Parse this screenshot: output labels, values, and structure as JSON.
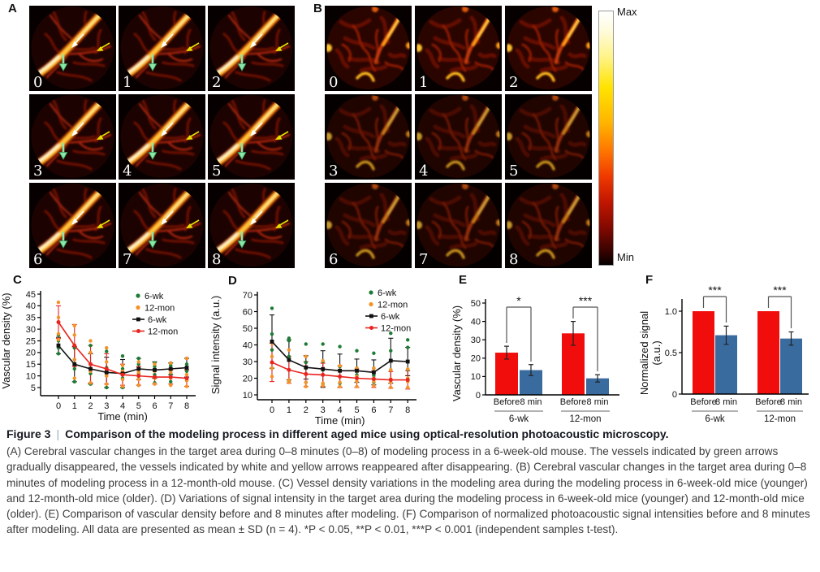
{
  "figure": {
    "panel_letters": {
      "A": "A",
      "B": "B",
      "C": "C",
      "D": "D",
      "E": "E",
      "F": "F"
    },
    "panelA": {
      "frames": [
        "0",
        "1",
        "2",
        "3",
        "4",
        "5",
        "6",
        "7",
        "8"
      ]
    },
    "panelB": {
      "frames": [
        "0",
        "1",
        "2",
        "3",
        "4",
        "5",
        "6",
        "7",
        "8"
      ]
    },
    "colorbar": {
      "max_label": "Max",
      "min_label": "Min"
    },
    "caption": {
      "fig_label": "Figure 3",
      "separator": "|",
      "title": "Comparison of the modeling process in different aged mice using optical-resolution photoacoustic microscopy.",
      "body": "(A) Cerebral vascular changes in the target area during 0–8 minutes (0–8) of modeling process in a 6-week-old mouse. The vessels indicated by green arrows gradually disappeared, the vessels indicated by white and yellow arrows reappeared after disappearing. (B) Cerebral vascular changes in the target area during 0–8 minutes of modeling process in a 12-month-old mouse. (C) Vessel density variations in the modeling area during the modeling process in 6-week-old mice (younger) and 12-month-old mice (older). (D) Variations of signal intensity in the target area during the modeling process in 6-week-old mice (younger) and 12-month-old mice (older). (E) Comparison of vascular density before and 8 minutes after modeling. (F) Comparison of normalized photoacoustic signal intensities before and 8 minutes after modeling. All data are presented as mean ± SD (n = 4). *P < 0.05, **P < 0.01, ***P < 0.001 (independent samples t-test)."
    }
  },
  "chart_data": [
    {
      "panel": "C",
      "type": "scatter",
      "title": "",
      "xlabel": "Time (min)",
      "ylabel": "Vascular density (%)",
      "x": [
        0,
        1,
        2,
        3,
        4,
        5,
        6,
        7,
        8
      ],
      "yticks": [
        5,
        10,
        15,
        20,
        25,
        30,
        35,
        40,
        45
      ],
      "ylim": [
        5,
        45
      ],
      "grid": false,
      "legend_position": "top-right",
      "scatter": [
        {
          "name": "6-wk",
          "color": "#1e7b34",
          "points": [
            [
              19.5,
              22,
              25,
              27.5
            ],
            [
              7.5,
              13,
              17,
              22
            ],
            [
              6.5,
              11,
              15,
              23
            ],
            [
              5,
              10,
              13.5,
              20.5
            ],
            [
              5,
              9,
              13,
              18.5
            ],
            [
              6,
              11,
              15,
              17.5
            ],
            [
              7,
              10.5,
              14,
              15.5
            ],
            [
              7.5,
              11,
              14.5,
              15.5
            ],
            [
              8,
              12,
              15,
              17.5
            ]
          ]
        },
        {
          "name": "12-mon",
          "color": "#f59227",
          "points": [
            [
              25.5,
              28,
              35,
              41.5
            ],
            [
              9,
              17,
              27.5,
              31.5
            ],
            [
              7,
              12,
              20,
              25
            ],
            [
              6.5,
              10,
              16,
              22
            ],
            [
              5.5,
              8.5,
              12,
              14.5
            ],
            [
              6,
              8.5,
              11.5,
              16
            ],
            [
              6.5,
              9,
              12,
              15
            ],
            [
              6,
              9,
              11.5,
              15.5
            ],
            [
              5.5,
              8,
              10.5,
              17.5
            ]
          ]
        }
      ],
      "series": [
        {
          "name": "6-wk",
          "color": "#111111",
          "marker": "square",
          "values": [
            23,
            15,
            13,
            11.5,
            11,
            13,
            12.5,
            13,
            13.5
          ],
          "errors": [
            3.5,
            7.5,
            6.5,
            6.5,
            6,
            4.5,
            3.5,
            2.5,
            4
          ]
        },
        {
          "name": "12-mon",
          "color": "#e8241e",
          "marker": "circle",
          "values": [
            33,
            23,
            15,
            13,
            10.5,
            10,
            9.5,
            9.5,
            9
          ],
          "errors": [
            7,
            9,
            8,
            6.5,
            4.5,
            4,
            3,
            3,
            3.5
          ]
        }
      ]
    },
    {
      "panel": "D",
      "type": "scatter",
      "title": "",
      "xlabel": "Time (min)",
      "ylabel": "Signal intensity (a.u.)",
      "x": [
        0,
        1,
        2,
        3,
        4,
        5,
        6,
        7,
        8
      ],
      "yticks": [
        10,
        20,
        30,
        40,
        50,
        60,
        70
      ],
      "ylim": [
        10,
        70
      ],
      "grid": false,
      "legend_position": "top-right",
      "scatter": [
        {
          "name": "6-wk",
          "color": "#1e7b34",
          "points": [
            [
              26,
              37,
              46.5,
              62
            ],
            [
              18,
              33,
              42.5,
              44
            ],
            [
              17.5,
              26,
              29.5,
              40.5
            ],
            [
              16.5,
              25,
              30,
              40.5
            ],
            [
              17,
              21,
              27,
              39
            ],
            [
              18,
              22,
              26,
              36.5
            ],
            [
              17.5,
              21.5,
              26,
              35
            ],
            [
              19,
              25,
              36.5,
              47
            ],
            [
              19,
              25,
              38.5,
              43
            ]
          ]
        },
        {
          "name": "12-mon",
          "color": "#f59227",
          "points": [
            [
              21,
              26,
              33,
              41
            ],
            [
              17.5,
              19,
              25,
              37
            ],
            [
              15,
              17.5,
              22.5,
              33
            ],
            [
              15.5,
              17,
              22,
              30.5
            ],
            [
              15,
              17.5,
              21,
              27.5
            ],
            [
              15,
              18,
              21,
              26
            ],
            [
              15.5,
              18,
              20,
              26
            ],
            [
              14.5,
              17.5,
              19.5,
              25
            ],
            [
              14.5,
              18,
              20,
              25.5
            ]
          ]
        }
      ],
      "series": [
        {
          "name": "6-wk",
          "color": "#111111",
          "marker": "square",
          "values": [
            42,
            31,
            26.5,
            25.5,
            24.5,
            24.5,
            23.5,
            30.5,
            30
          ],
          "errors": [
            16,
            12,
            7,
            11,
            10,
            7,
            7.5,
            13.5,
            8.5
          ]
        },
        {
          "name": "12-mon",
          "color": "#e8241e",
          "marker": "circle",
          "values": [
            29.5,
            25,
            22.5,
            22,
            21,
            20,
            19.5,
            19,
            19
          ],
          "errors": [
            11.5,
            8,
            7.5,
            7,
            6.5,
            5.5,
            5,
            5,
            5.5
          ]
        }
      ]
    },
    {
      "panel": "E",
      "type": "bar",
      "title": "",
      "ylabel": "Vascular density (%)",
      "yticks": [
        "0",
        "10",
        "20",
        "30",
        "40",
        "50"
      ],
      "ylim": [
        0,
        55
      ],
      "groups": [
        "6-wk",
        "12-mon"
      ],
      "conditions": [
        "Before",
        "8 min"
      ],
      "bar_colors": [
        "#f20d0d",
        "#3a6b9f"
      ],
      "values": [
        [
          23,
          13.5
        ],
        [
          33.5,
          9
        ]
      ],
      "errors": [
        [
          3.5,
          3
        ],
        [
          6.5,
          2
        ]
      ],
      "significance": [
        "*",
        "***"
      ]
    },
    {
      "panel": "F",
      "type": "bar",
      "title": "",
      "ylabel": "Normalized signal",
      "ylabel2": "(a.u.)",
      "yticks": [
        "0",
        "0.5",
        "1.0"
      ],
      "ylim": [
        0,
        1.15
      ],
      "groups": [
        "6-wk",
        "12-mon"
      ],
      "conditions": [
        "Before",
        "8 min"
      ],
      "bar_colors": [
        "#f20d0d",
        "#3a6b9f"
      ],
      "values": [
        [
          1.0,
          0.71
        ],
        [
          1.0,
          0.67
        ]
      ],
      "errors": [
        [
          0,
          0.11
        ],
        [
          0,
          0.08
        ]
      ],
      "significance": [
        "***",
        "***"
      ]
    }
  ]
}
